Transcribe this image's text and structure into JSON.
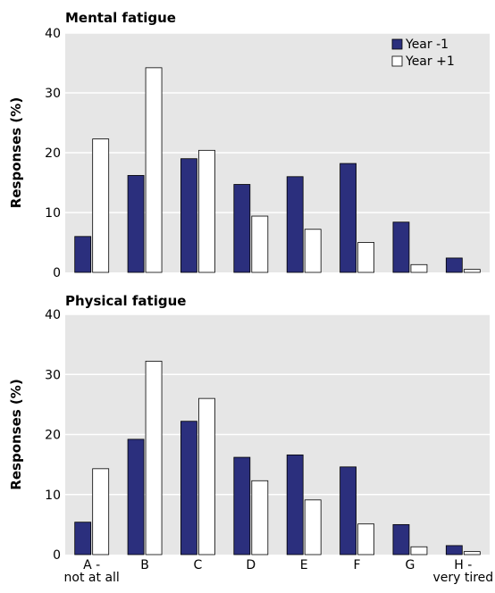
{
  "chart_data": [
    {
      "type": "bar",
      "title": "Mental fatigue",
      "ylabel": "Responses (%)",
      "xlabel": "",
      "ylim": [
        0,
        40
      ],
      "yticks": [
        0,
        10,
        20,
        30,
        40
      ],
      "categories": [
        "A -\nnot at all",
        "B",
        "C",
        "D",
        "E",
        "F",
        "G",
        "H -\nvery tired"
      ],
      "series": [
        {
          "name": "Year -1",
          "color": "#2b2f7d",
          "values": [
            6,
            16.2,
            19,
            14.7,
            16,
            18.2,
            8.4,
            2.4
          ]
        },
        {
          "name": "Year +1",
          "color": "#ffffff",
          "values": [
            22.3,
            34.2,
            20.4,
            9.4,
            7.2,
            5,
            1.3,
            0.5
          ]
        }
      ],
      "legend": "top-right",
      "background": "#e6e6e6",
      "grid": "horizontal"
    },
    {
      "type": "bar",
      "title": "Physical fatigue",
      "ylabel": "Responses (%)",
      "xlabel": "",
      "ylim": [
        0,
        40
      ],
      "yticks": [
        0,
        10,
        20,
        30,
        40
      ],
      "categories": [
        "A -\nnot at all",
        "B",
        "C",
        "D",
        "E",
        "F",
        "G",
        "H -\nvery tired"
      ],
      "series": [
        {
          "name": "Year -1",
          "color": "#2b2f7d",
          "values": [
            5.4,
            19.2,
            22.2,
            16.2,
            16.6,
            14.6,
            5,
            1.5
          ]
        },
        {
          "name": "Year +1",
          "color": "#ffffff",
          "values": [
            14.3,
            32.2,
            26,
            12.3,
            9.1,
            5.1,
            1.3,
            0.5
          ]
        }
      ],
      "legend": "none",
      "background": "#e6e6e6",
      "grid": "horizontal"
    }
  ]
}
